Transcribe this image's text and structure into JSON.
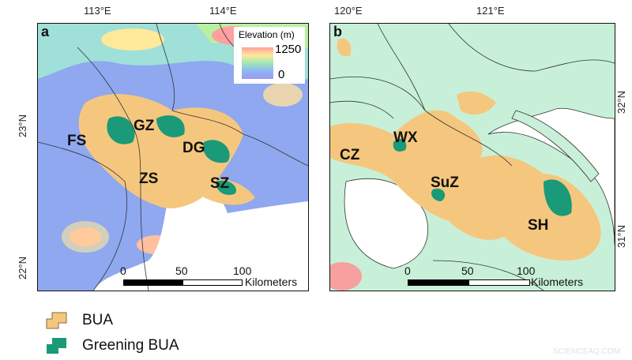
{
  "panel_a": {
    "label": "a",
    "lon_ticks": [
      "113°E",
      "114°E"
    ],
    "lat_ticks": [
      "23°N",
      "22°N"
    ],
    "cities": [
      "FS",
      "GZ",
      "DG",
      "ZS",
      "SZ"
    ],
    "elevation_legend": {
      "title": "Elevation (m)",
      "max": "1250",
      "min": "0",
      "colors": [
        "#ff9f9f",
        "#ffe99a",
        "#9fe6b8",
        "#8fb5f5",
        "#9a9af0"
      ]
    },
    "scale_bar": {
      "ticks": [
        "0",
        "50",
        "100"
      ],
      "unit": "Kilometers"
    }
  },
  "panel_b": {
    "label": "b",
    "lon_ticks": [
      "120°E",
      "121°E"
    ],
    "lat_ticks": [
      "32°N",
      "31°N"
    ],
    "cities": [
      "CZ",
      "WX",
      "SuZ",
      "SH"
    ],
    "scale_bar": {
      "ticks": [
        "0",
        "50",
        "100"
      ],
      "unit": "Kilometers"
    }
  },
  "legend": {
    "items": [
      {
        "label": "BUA",
        "color": "#f5c77e"
      },
      {
        "label": "Greening BUA",
        "color": "#1a9a78"
      }
    ]
  },
  "watermark": "SCIENCEAQ.COM"
}
